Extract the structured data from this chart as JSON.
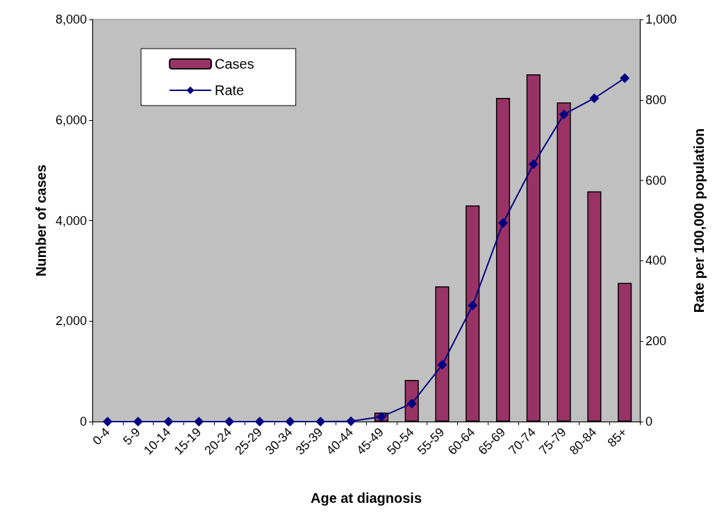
{
  "chart_data": {
    "type": "bar",
    "xlabel": "Age at diagnosis",
    "ylabel": "Number of cases",
    "y2label": "Rate per 100,000 population",
    "categories": [
      "0-4",
      "5-9",
      "10-14",
      "15-19",
      "20-24",
      "25-29",
      "30-34",
      "35-39",
      "40-44",
      "45-49",
      "50-54",
      "55-59",
      "60-64",
      "65-69",
      "70-74",
      "75-79",
      "80-84",
      "85+"
    ],
    "series": [
      {
        "name": "Cases",
        "color": "#993366",
        "values": [
          0,
          0,
          0,
          0,
          0,
          0,
          0,
          0,
          null,
          180,
          830,
          2690,
          4300,
          6440,
          6910,
          6350,
          4580,
          2760
        ]
      },
      {
        "name": "Rate",
        "type": "line",
        "axis": "y2",
        "color": "#000080",
        "marker": "diamond",
        "values": [
          0,
          0,
          0,
          0,
          0,
          0,
          0,
          0,
          1,
          12,
          45,
          141,
          289,
          494,
          640,
          764,
          804,
          854
        ]
      }
    ],
    "ylim": [
      0,
      8000
    ],
    "yticks": [
      {
        "value": 0,
        "label": "0"
      },
      {
        "value": 2000,
        "label": "2,000"
      },
      {
        "value": 4000,
        "label": "4,000"
      },
      {
        "value": 6000,
        "label": "6,000"
      },
      {
        "value": 8000,
        "label": "8,000"
      }
    ],
    "y2lim": [
      0,
      1000
    ],
    "y2ticks": [
      0,
      200,
      400,
      600,
      800,
      {
        "value": 1000,
        "label": "1,000"
      }
    ],
    "grid": false,
    "legend": "top left"
  }
}
